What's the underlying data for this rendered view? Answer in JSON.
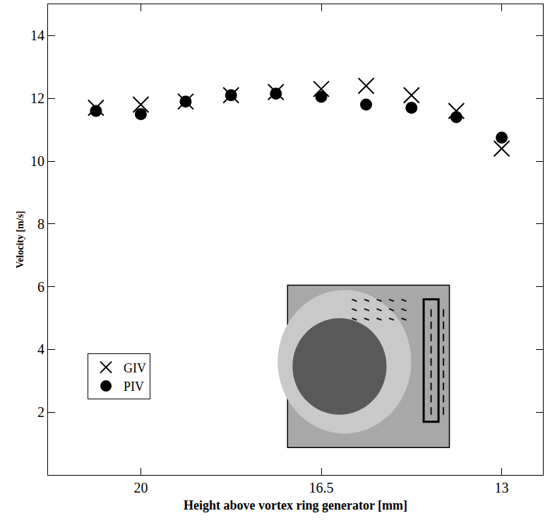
{
  "chart_data": {
    "type": "scatter",
    "x_label": "Height above vortex ring generator [mm]",
    "y_label": "Velocity [m/s]",
    "xlim": [
      21.8,
      12.2
    ],
    "xticks": [
      20,
      16.5,
      13
    ],
    "ylim": [
      0,
      15
    ],
    "yticks": [
      2,
      4,
      6,
      8,
      10,
      12,
      14
    ],
    "grid": false,
    "legend": "lower left",
    "x": [
      20.87,
      20,
      19.13,
      18.25,
      17.38,
      16.5,
      15.63,
      14.75,
      13.88,
      13
    ],
    "series": [
      {
        "name": "GIV",
        "color": "#000000",
        "marker": "x",
        "values": [
          11.7,
          11.8,
          11.9,
          12.1,
          12.2,
          12.3,
          12.4,
          12.1,
          11.6,
          10.4
        ]
      },
      {
        "name": "PIV",
        "color": "#000000",
        "marker": "circle",
        "values": [
          11.6,
          11.5,
          11.9,
          12.1,
          12.15,
          12.05,
          11.8,
          11.7,
          11.4,
          10.75
        ]
      }
    ]
  }
}
